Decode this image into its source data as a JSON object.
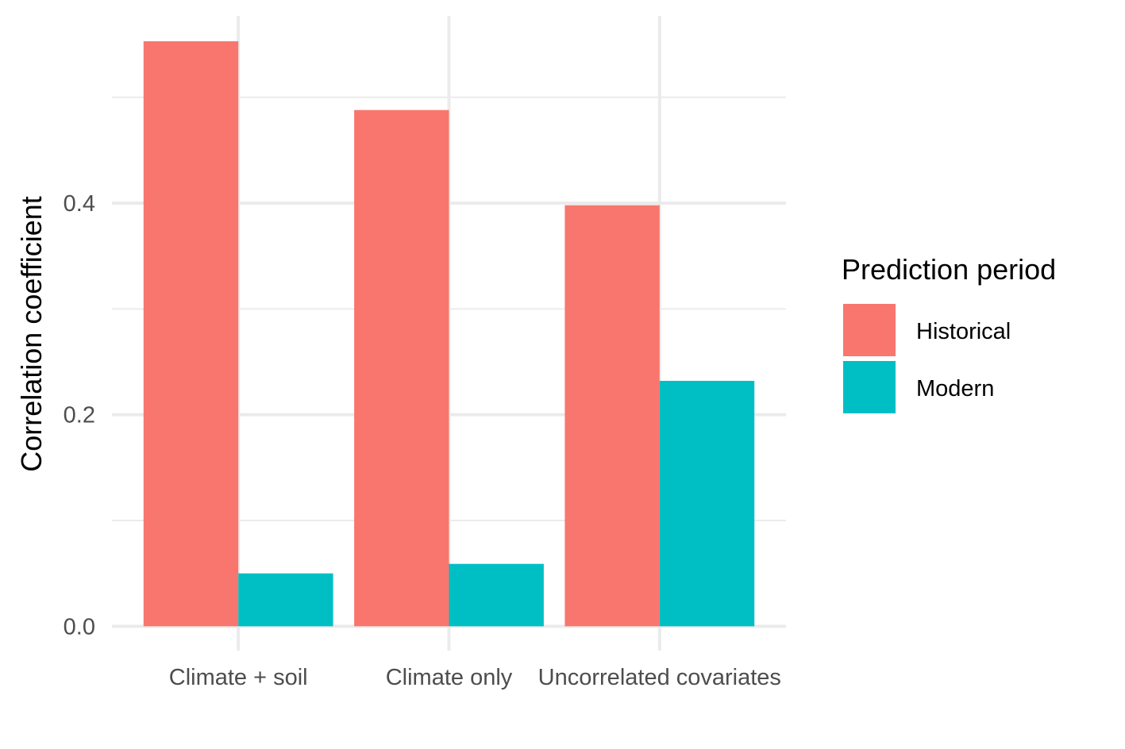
{
  "chart_data": {
    "type": "bar",
    "title": "",
    "xlabel": "",
    "ylabel": "Correlation coefficient",
    "categories": [
      "Climate + soil",
      "Climate only",
      "Uncorrelated covariates"
    ],
    "series": [
      {
        "name": "Historical",
        "color": "#F8766D",
        "values": [
          0.553,
          0.488,
          0.398
        ]
      },
      {
        "name": "Modern",
        "color": "#00BFC4",
        "values": [
          0.05,
          0.059,
          0.232
        ]
      }
    ],
    "ylim": [
      -0.023,
      0.577
    ],
    "yticks": [
      0.0,
      0.2,
      0.4
    ],
    "ytick_labels": [
      "0.0",
      "0.2",
      "0.4"
    ],
    "grid": true,
    "legend": {
      "title": "Prediction period",
      "position": "right"
    }
  }
}
